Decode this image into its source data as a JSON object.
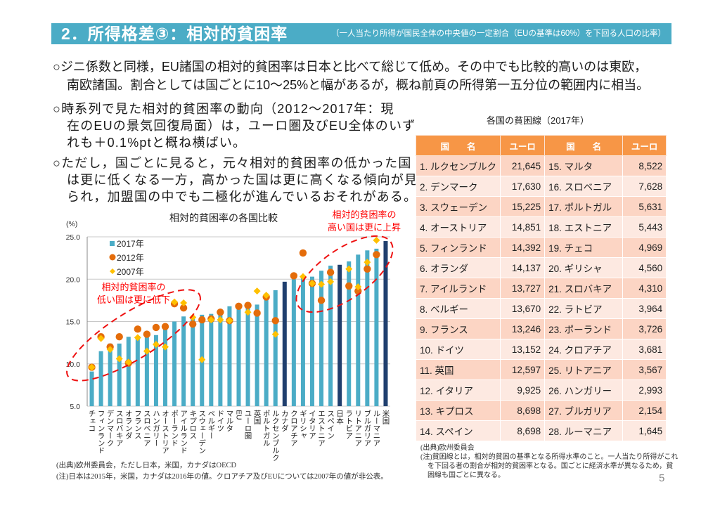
{
  "header": {
    "title": "2．所得格差③：相対的貧困率",
    "subtitle": "（一人当たり所得が国民全体の中央値の一定割合（EUの基準は60%）を下回る人口の比率）"
  },
  "paragraphs": [
    {
      "lines": [
        "○ジニ係数と同様，EU諸国の相対的貧困率は日本と比べて総じて低め。その中でも比較的高いのは東欧，",
        "南欧諸国。割合としては国ごとに10～25%と幅があるが，概ね前頁の所得第一五分位の範囲内に相当。"
      ]
    },
    {
      "lines": [
        "○時系列で見た相対的貧困率の動向（2012～2017年：現",
        "在のEUの景気回復局面）は，ユーロ圏及びEU全体のいず",
        "れも＋0.1%ptと概ね横ばい。"
      ]
    },
    {
      "lines": [
        "○ただし，国ごとに見ると，元々相対的貧困率の低かった国",
        "は更に低くなる一方，高かった国は更に高くなる傾向が見",
        "られ，加盟国の中でも二極化が進んでいるおそれがある。"
      ]
    }
  ],
  "chart_data": {
    "type": "bar",
    "title": "相対的貧困率の各国比較",
    "xlabel": "",
    "ylabel": "(%)",
    "ylim": [
      5,
      25
    ],
    "yticks": [
      "5.0",
      "10.0",
      "15.0",
      "20.0",
      "25.0"
    ],
    "grid": true,
    "legend": "top-left",
    "categories": [
      "チェコ",
      "フィンランド",
      "デンマーク",
      "スロバキア",
      "オランダ",
      "フランス",
      "スロベニア",
      "ハンガリー",
      "オーストリア",
      "ポーランド",
      "アイルランド",
      "キプロス",
      "スウェーデン",
      "ベルギー",
      "ドイツ",
      "マルタ",
      "EU",
      "ユーロ圏",
      "英国",
      "ポルトガル",
      "ルクセンブルク",
      "カナダ",
      "クロアチア",
      "ギリシャ",
      "イタリア",
      "エストニア",
      "スペイン",
      "日本",
      "ラトビア",
      "リトアニア",
      "ブルガリア",
      "ルーマニア",
      "米国"
    ],
    "highlight_categories": [
      "カナダ",
      "日本",
      "米国"
    ],
    "highlight_color": "#203f6e",
    "series": [
      {
        "name": "2017年",
        "type": "bar",
        "marker": "square",
        "color": "#4bacc6",
        "values": [
          9.1,
          11.5,
          12.4,
          12.4,
          13.2,
          13.3,
          13.3,
          13.4,
          14.4,
          15.0,
          15.6,
          15.7,
          15.8,
          15.9,
          16.1,
          16.8,
          16.9,
          17.0,
          17.0,
          18.3,
          18.7,
          19.7,
          20.0,
          20.2,
          20.3,
          21.0,
          21.6,
          21.7,
          22.1,
          22.9,
          23.4,
          23.6,
          24.5
        ]
      },
      {
        "name": "2012年",
        "type": "scatter",
        "marker": "circle",
        "color": "#e46c0a",
        "values": [
          9.6,
          13.2,
          12.0,
          13.2,
          10.1,
          14.1,
          13.5,
          14.3,
          14.4,
          17.1,
          16.6,
          14.7,
          15.2,
          15.3,
          16.1,
          15.1,
          16.8,
          16.9,
          16.0,
          17.9,
          15.1,
          null,
          20.4,
          23.1,
          19.5,
          17.5,
          20.8,
          null,
          19.2,
          18.6,
          21.2,
          22.9,
          null
        ]
      },
      {
        "name": "2007年",
        "type": "scatter",
        "marker": "diamond",
        "color": "#ffc000",
        "values": [
          9.6,
          13.0,
          11.7,
          10.6,
          10.2,
          13.1,
          11.5,
          12.3,
          12.0,
          17.3,
          17.2,
          15.5,
          10.5,
          15.2,
          15.2,
          15.1,
          null,
          16.1,
          18.6,
          18.1,
          13.5,
          null,
          null,
          20.3,
          19.5,
          19.4,
          19.7,
          null,
          21.2,
          19.1,
          22.0,
          24.6,
          null
        ]
      }
    ],
    "annotations": [
      {
        "id": "low",
        "lines": [
          "相対的貧困率の",
          "低い国は更に低下"
        ],
        "color": "#ff0000"
      },
      {
        "id": "high",
        "lines": [
          "相対的貧困率の",
          "高い国は更に上昇"
        ],
        "color": "#ff0000"
      }
    ],
    "notes": [
      "(出典)欧州委員会，ただし日本，米国，カナダはOECD",
      "(注)日本は2015年，米国，カナダは2016年の値。クロアチア及びEUについては2007年の値が非公表。"
    ]
  },
  "poverty_table": {
    "title": "各国の貧困線（2017年）",
    "headers": [
      "国　　名",
      "ユーロ",
      "国　　名",
      "ユーロ"
    ],
    "rows": [
      [
        "1. ルクセンブルク",
        "21,645",
        "15. マルタ",
        "8,522"
      ],
      [
        "2. デンマーク",
        "17,630",
        "16. スロベニア",
        "7,628"
      ],
      [
        "3. スウェーデン",
        "15,225",
        "17. ポルトガル",
        "5,631"
      ],
      [
        "4. オーストリア",
        "14,851",
        "18. エストニア",
        "5,443"
      ],
      [
        "5. フィンランド",
        "14,392",
        "19. チェコ",
        "4,969"
      ],
      [
        "6. オランダ",
        "14,137",
        "20. ギリシャ",
        "4,560"
      ],
      [
        "7. アイルランド",
        "13,727",
        "21. スロバキア",
        "4,310"
      ],
      [
        "8. ベルギー",
        "13,670",
        "22. ラトビア",
        "3,964"
      ],
      [
        "9. フランス",
        "13,246",
        "23. ポーランド",
        "3,726"
      ],
      [
        "10. ドイツ",
        "13,152",
        "24. クロアチア",
        "3,681"
      ],
      [
        "11. 英国",
        "12,597",
        "25. リトアニア",
        "3,567"
      ],
      [
        "12. イタリア",
        "9,925",
        "26. ハンガリー",
        "2,993"
      ],
      [
        "13. キプロス",
        "8,698",
        "27. ブルガリア",
        "2,154"
      ],
      [
        "14. スペイン",
        "8,698",
        "28. ルーマニア",
        "1,645"
      ]
    ],
    "notes": [
      "(出典)欧州委員会",
      "(注)貧困線とは，相対的貧困の基準となる所得水準のこと。一人当たり所得がこれ",
      "を下回る者の割合が相対的貧困率となる。国ごとに経済水準が異なるため，貧",
      "困線も国ごとに異なる。"
    ]
  },
  "page_number": "5"
}
